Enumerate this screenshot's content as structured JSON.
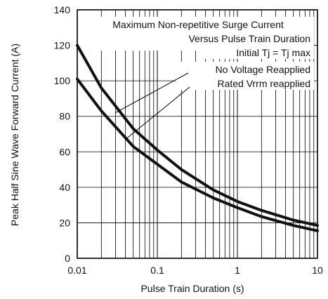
{
  "chart_data": {
    "type": "line",
    "x_scale": "log",
    "xlim": [
      0.01,
      10
    ],
    "ylim": [
      0,
      140
    ],
    "xlabel": "Pulse Train Duration (s)",
    "ylabel": "Peak Half Sine Wave Forward Current (A)",
    "x_ticks": [
      "0.01",
      "0.1",
      "1",
      "10"
    ],
    "y_ticks": [
      "0",
      "20",
      "40",
      "60",
      "80",
      "100",
      "120",
      "140"
    ],
    "annotations": {
      "title_line1": "Maximum Non-repetitive Surge Current",
      "title_line2": "Versus Pulse Train Duration",
      "condition": "Initial Tj = Tj max",
      "label_upper": "No Voltage Reapplied",
      "label_lower": "Rated Vrrm reapplied"
    },
    "series": [
      {
        "name": "No Voltage Reapplied",
        "x": [
          0.01,
          0.02,
          0.05,
          0.1,
          0.2,
          0.5,
          1,
          2,
          5,
          10
        ],
        "y": [
          120,
          96,
          73,
          61,
          50,
          38.5,
          32,
          27,
          21.5,
          18.5
        ]
      },
      {
        "name": "Rated Vrrm reapplied",
        "x": [
          0.01,
          0.02,
          0.05,
          0.1,
          0.2,
          0.5,
          1,
          2,
          5,
          10
        ],
        "y": [
          101,
          83,
          63,
          53,
          43,
          34,
          28.5,
          23.5,
          18.5,
          15.5
        ]
      }
    ],
    "grid": true
  }
}
